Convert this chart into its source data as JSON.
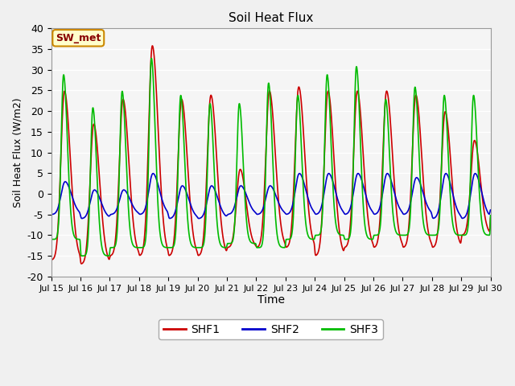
{
  "title": "Soil Heat Flux",
  "xlabel": "Time",
  "ylabel": "Soil Heat Flux (W/m2)",
  "ylim": [
    -20,
    40
  ],
  "yticks": [
    -20,
    -15,
    -10,
    -5,
    0,
    5,
    10,
    15,
    20,
    25,
    30,
    35,
    40
  ],
  "xtick_labels": [
    "Jul 15",
    "Jul 16",
    "Jul 17",
    "Jul 18",
    "Jul 19",
    "Jul 20",
    "Jul 21",
    "Jul 22",
    "Jul 23",
    "Jul 24",
    "Jul 25",
    "Jul 26",
    "Jul 27",
    "Jul 28",
    "Jul 29",
    "Jul 30"
  ],
  "line_colors": {
    "SHF1": "#cc0000",
    "SHF2": "#0000cc",
    "SHF3": "#00bb00"
  },
  "line_width": 1.2,
  "fig_facecolor": "#f0f0f0",
  "ax_facecolor": "#e8e8e8",
  "annotation_text": "SW_met",
  "annotation_bg": "#ffffcc",
  "annotation_border": "#cc8800",
  "annotation_text_color": "#880000"
}
